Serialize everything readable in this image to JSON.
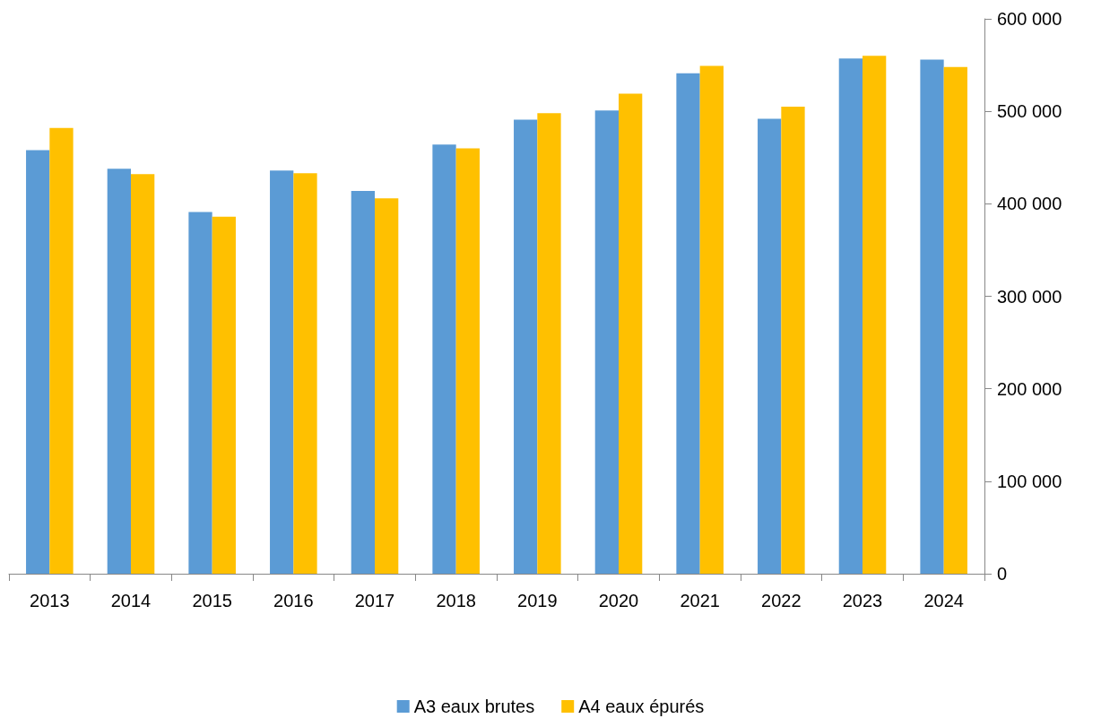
{
  "chart_data": {
    "type": "bar",
    "categories": [
      "2013",
      "2014",
      "2015",
      "2016",
      "2017",
      "2018",
      "2019",
      "2020",
      "2021",
      "2022",
      "2023",
      "2024"
    ],
    "series": [
      {
        "name": "A3 eaux brutes",
        "color": "#5b9bd5",
        "values": [
          458000,
          438000,
          391000,
          436000,
          414000,
          464000,
          491000,
          501000,
          541000,
          492000,
          557000,
          556000
        ]
      },
      {
        "name": "A4 eaux épurés",
        "color": "#ffc000",
        "values": [
          482000,
          432000,
          386000,
          433000,
          406000,
          460000,
          498000,
          519000,
          549000,
          505000,
          560000,
          548000
        ]
      }
    ],
    "ylim": [
      0,
      600000
    ],
    "yticks": [
      0,
      {
        "value": 100000,
        "label": "100 000"
      },
      {
        "value": 200000,
        "label": "200 000"
      },
      {
        "value": 300000,
        "label": "300 000"
      },
      {
        "value": 400000,
        "label": "400 000"
      },
      {
        "value": 500000,
        "label": "500 000"
      },
      {
        "value": 600000,
        "label": "600 000"
      }
    ],
    "grid": false,
    "legend": "bottom"
  }
}
